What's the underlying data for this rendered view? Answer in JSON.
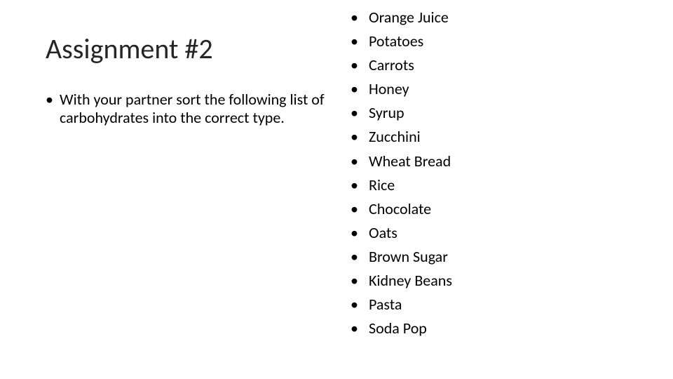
{
  "slide": {
    "title": "Assignment #2",
    "instruction": "With your partner sort the following list of carbohydrates into the correct type.",
    "items": [
      "Orange Juice",
      "Potatoes",
      "Carrots",
      "Honey",
      "Syrup",
      "Zucchini",
      "Wheat Bread",
      "Rice",
      "Chocolate",
      "Oats",
      "Brown Sugar",
      "Kidney Beans",
      "Pasta",
      "Soda Pop"
    ]
  },
  "style": {
    "background_color": "#ffffff",
    "text_color": "#000000",
    "title_color": "#262626",
    "title_fontsize": 40,
    "title_fontweight": 300,
    "body_fontsize": 22,
    "list_lineheight": 1.55,
    "font_family": "Calibri"
  }
}
